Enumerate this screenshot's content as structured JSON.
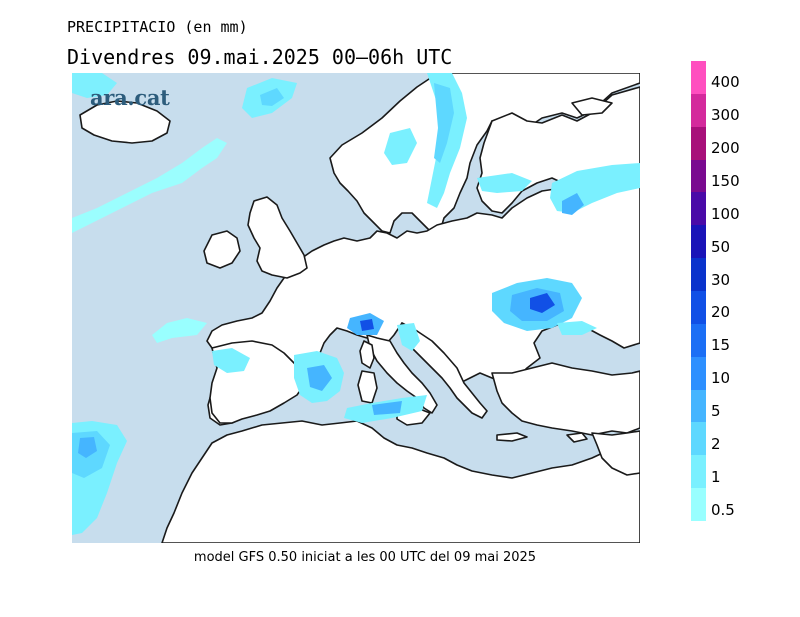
{
  "header": {
    "variable": "PRECIPITACIO (en mm)",
    "period": "Divendres  09.mai.2025 00–06h UTC"
  },
  "footer": "model GFS 0.50 iniciat a les 00 UTC del 09 mai 2025",
  "logo": "ara.cat",
  "colors": {
    "sea": "#c7dded",
    "land": "#ffffff",
    "coast": "#1a1a1a"
  },
  "legend": {
    "levels": [
      {
        "label": "0.5",
        "color": "#99ffff"
      },
      {
        "label": "1",
        "color": "#7af0ff"
      },
      {
        "label": "2",
        "color": "#5ed8ff"
      },
      {
        "label": "5",
        "color": "#45b5ff"
      },
      {
        "label": "10",
        "color": "#2e90ff"
      },
      {
        "label": "15",
        "color": "#1c6ff5"
      },
      {
        "label": "20",
        "color": "#1150e6"
      },
      {
        "label": "30",
        "color": "#0a33cc"
      },
      {
        "label": "50",
        "color": "#1a14b8"
      },
      {
        "label": "100",
        "color": "#4a0aa8"
      },
      {
        "label": "150",
        "color": "#7a0a90"
      },
      {
        "label": "200",
        "color": "#a8107a"
      },
      {
        "label": "300",
        "color": "#d42a9c"
      },
      {
        "label": "400",
        "color": "#ff4fbf"
      }
    ]
  }
}
